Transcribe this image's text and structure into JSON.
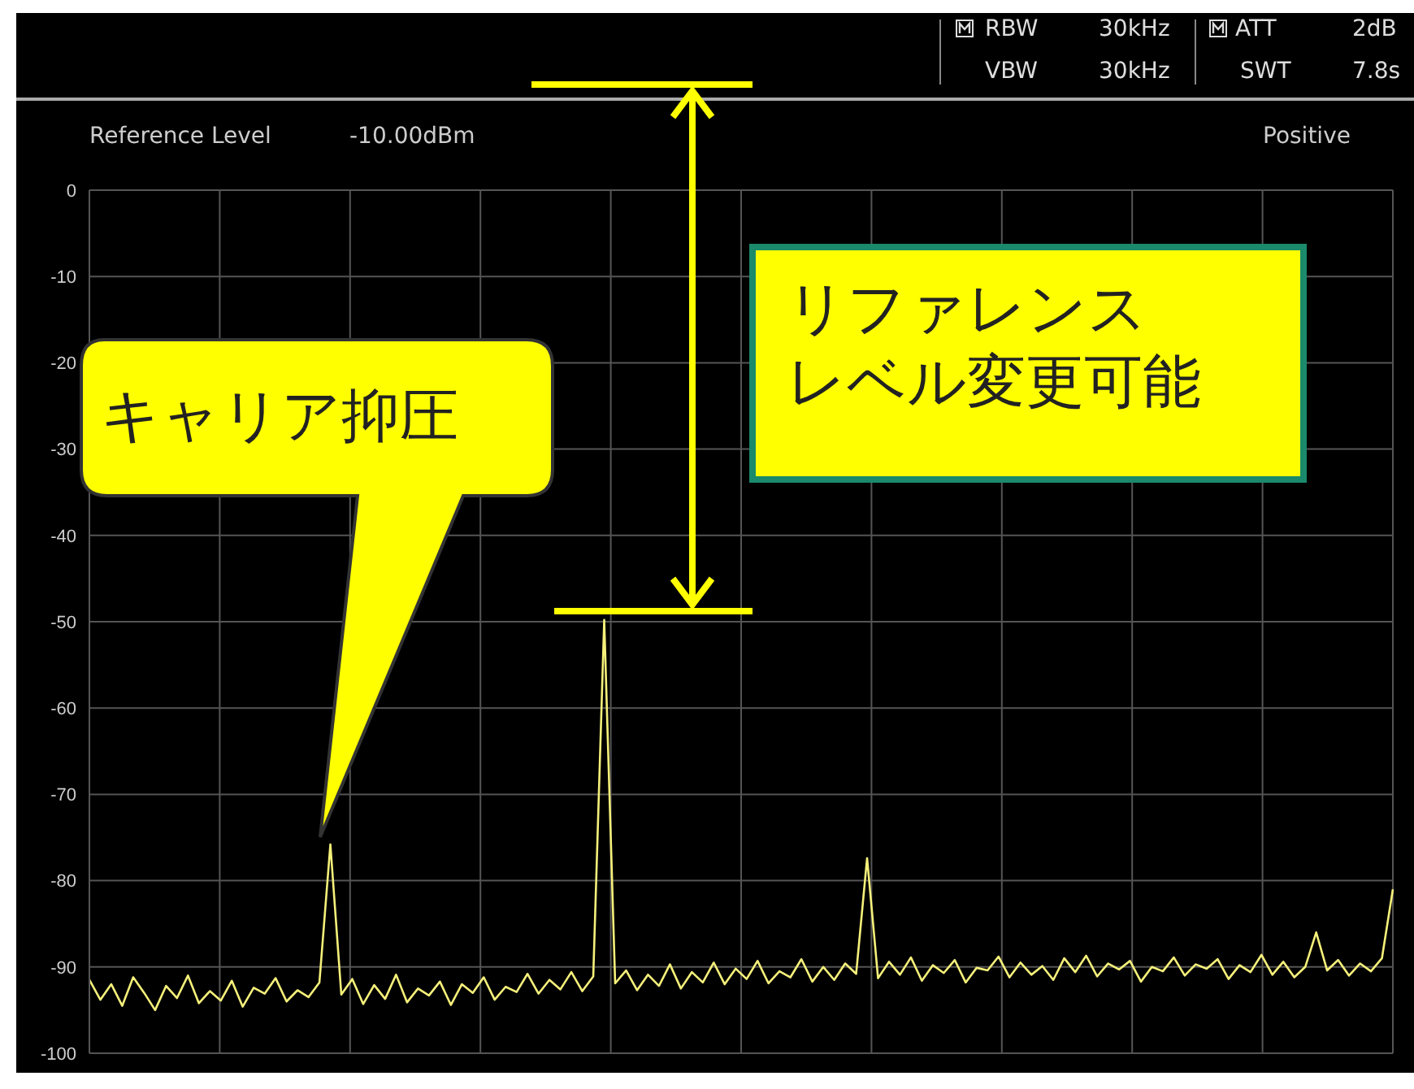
{
  "chart_data": {
    "type": "line",
    "categories": [
      null,
      null,
      null,
      null,
      null,
      null,
      null,
      null,
      null,
      null,
      null,
      null,
      null,
      null,
      null,
      null,
      null,
      null,
      null,
      null,
      null,
      null,
      null,
      null,
      null,
      null,
      null,
      null,
      null,
      null,
      null,
      null,
      null,
      null,
      null,
      null,
      null,
      null,
      null,
      null,
      null,
      null,
      null,
      null,
      null,
      null,
      null,
      null,
      null,
      null,
      null,
      null,
      null,
      null,
      null,
      null,
      null,
      null,
      null,
      null,
      null,
      null,
      null,
      null,
      null,
      null,
      null,
      null,
      null,
      null,
      null,
      null,
      null,
      null,
      null,
      null,
      null,
      null,
      null,
      null,
      null,
      null,
      null,
      null,
      null,
      null,
      null,
      null,
      null,
      null,
      null,
      null,
      null,
      null,
      null,
      null,
      null,
      null,
      null,
      null,
      null,
      null,
      null,
      null,
      null,
      null,
      null,
      null,
      null,
      null,
      null,
      null,
      null,
      null,
      null,
      null,
      null,
      null,
      null,
      null
    ],
    "series": [
      {
        "color": "#f5f07a",
        "values": [
          -91.5,
          -93.8,
          -92.0,
          -94.5,
          -91.2,
          -93.0,
          -95.0,
          -92.2,
          -93.6,
          -91.0,
          -94.2,
          -92.8,
          -93.9,
          -91.6,
          -94.6,
          -92.4,
          -93.1,
          -91.3,
          -94.0,
          -92.7,
          -93.5,
          -91.8,
          -75.8,
          -93.2,
          -91.4,
          -94.3,
          -92.1,
          -93.7,
          -90.9,
          -94.1,
          -92.5,
          -93.3,
          -91.7,
          -94.4,
          -92.0,
          -93.0,
          -91.2,
          -93.8,
          -92.3,
          -92.9,
          -90.8,
          -93.1,
          -91.5,
          -92.6,
          -90.6,
          -92.8,
          -91.1,
          -49.8,
          -91.9,
          -90.4,
          -92.7,
          -90.9,
          -92.2,
          -89.7,
          -92.5,
          -90.6,
          -91.8,
          -89.5,
          -92.0,
          -90.2,
          -91.4,
          -89.3,
          -91.9,
          -90.5,
          -91.2,
          -89.1,
          -91.7,
          -90.0,
          -91.5,
          -89.6,
          -90.8,
          -77.4,
          -91.3,
          -89.4,
          -90.9,
          -88.9,
          -91.6,
          -89.8,
          -90.7,
          -89.2,
          -91.8,
          -90.1,
          -90.4,
          -88.8,
          -91.2,
          -89.5,
          -90.9,
          -89.9,
          -91.5,
          -89.0,
          -90.6,
          -88.7,
          -91.1,
          -89.6,
          -90.3,
          -89.3,
          -91.7,
          -90.0,
          -90.5,
          -88.9,
          -91.0,
          -89.7,
          -90.2,
          -89.1,
          -91.4,
          -89.8,
          -90.6,
          -88.6,
          -90.9,
          -89.4,
          -91.2,
          -90.0,
          -86.0,
          -90.4,
          -89.2,
          -91.0,
          -89.6,
          -90.5,
          -89.0,
          -81.0
        ]
      }
    ],
    "ylim": [
      -100,
      0
    ],
    "yticks": [
      0,
      -10,
      -20,
      -30,
      -40,
      -50,
      -60,
      -70,
      -80,
      -90,
      -100
    ],
    "grid": true,
    "tick_labels": "y",
    "marker": "none",
    "line_style": "solid",
    "legend": false,
    "annotations": [
      "RBW",
      "30kHz",
      "VBW",
      "30kHz",
      "ATT",
      "2dB",
      "SWT",
      "7.8s",
      "Reference Level",
      "-10.00dBm",
      "Positive",
      "キャリア抑圧",
      "リファレンス",
      "レベル変更可能"
    ]
  }
}
